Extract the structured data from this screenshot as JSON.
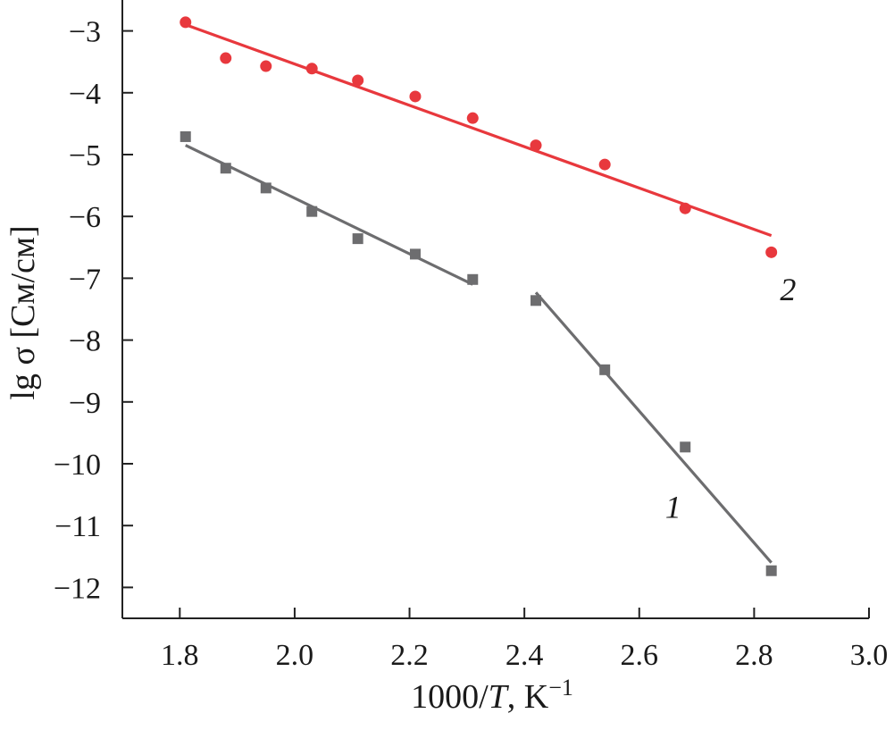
{
  "chart_data": {
    "type": "scatter",
    "title": "",
    "xlabel": {
      "prefix": "1000/",
      "var": "T",
      "unit": ", K",
      "sup": "−1"
    },
    "ylabel": "lg σ [См/см]",
    "xlim": [
      1.7,
      3.0
    ],
    "ylim": [
      -12.5,
      -2.5
    ],
    "grid": false,
    "xticks": [
      {
        "value": 1.8,
        "label": "1.8"
      },
      {
        "value": 2.0,
        "label": "2.0"
      },
      {
        "value": 2.2,
        "label": "2.2"
      },
      {
        "value": 2.4,
        "label": "2.4"
      },
      {
        "value": 2.6,
        "label": "2.6"
      },
      {
        "value": 2.8,
        "label": "2.8"
      },
      {
        "value": 3.0,
        "label": "3.0"
      }
    ],
    "yticks": [
      {
        "value": -3,
        "label": "−3"
      },
      {
        "value": -4,
        "label": "−4"
      },
      {
        "value": -5,
        "label": "−5"
      },
      {
        "value": -6,
        "label": "−6"
      },
      {
        "value": -7,
        "label": "−7"
      },
      {
        "value": -8,
        "label": "−8"
      },
      {
        "value": -9,
        "label": "−9"
      },
      {
        "value": -10,
        "label": "−10"
      },
      {
        "value": -11,
        "label": "−11"
      },
      {
        "value": -12,
        "label": "−12"
      }
    ],
    "series": [
      {
        "label": "1",
        "marker": "square",
        "color": "#6d6d6f",
        "points": [
          [
            1.81,
            -4.71
          ],
          [
            1.88,
            -5.22
          ],
          [
            1.95,
            -5.54
          ],
          [
            2.03,
            -5.92
          ],
          [
            2.11,
            -6.36
          ],
          [
            2.21,
            -6.61
          ],
          [
            2.31,
            -7.02
          ],
          [
            2.42,
            -7.36
          ],
          [
            2.54,
            -8.48
          ],
          [
            2.68,
            -9.73
          ],
          [
            2.83,
            -11.73
          ]
        ],
        "fits": [
          {
            "from": [
              1.81,
              -4.85
            ],
            "to": [
              2.31,
              -7.1
            ]
          },
          {
            "from": [
              2.42,
              -7.23
            ],
            "to": [
              2.83,
              -11.6
            ]
          }
        ],
        "label_pos": [
          2.645,
          -10.7
        ]
      },
      {
        "label": "2",
        "marker": "circle",
        "color": "#e8383d",
        "points": [
          [
            1.81,
            -2.86
          ],
          [
            1.88,
            -3.44
          ],
          [
            1.95,
            -3.57
          ],
          [
            2.03,
            -3.61
          ],
          [
            2.11,
            -3.8
          ],
          [
            2.21,
            -4.06
          ],
          [
            2.31,
            -4.41
          ],
          [
            2.42,
            -4.85
          ],
          [
            2.54,
            -5.16
          ],
          [
            2.68,
            -5.87
          ],
          [
            2.83,
            -6.58
          ]
        ],
        "fits": [
          {
            "from": [
              1.81,
              -2.9
            ],
            "to": [
              2.83,
              -6.31
            ]
          }
        ],
        "label_pos": [
          2.845,
          -7.18
        ]
      }
    ]
  }
}
